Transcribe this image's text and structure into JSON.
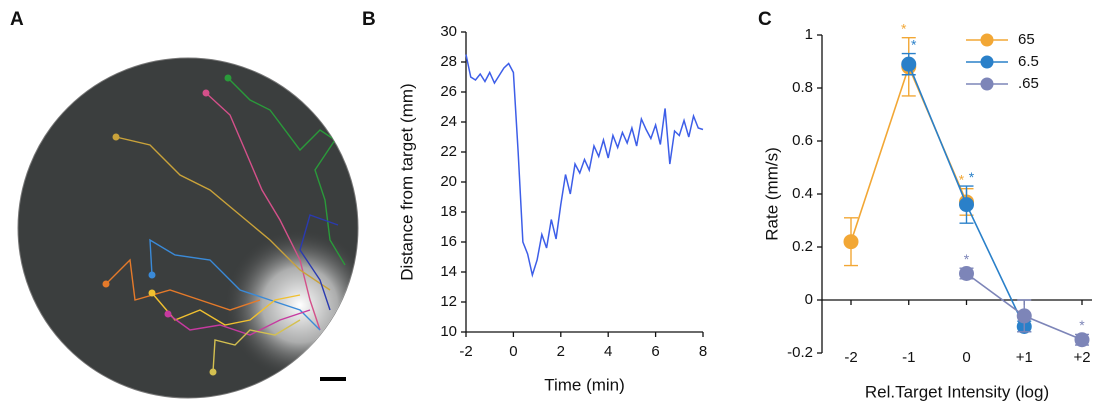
{
  "panel_a": {
    "label": "A"
  },
  "chart_data": [
    {
      "type": "line",
      "label": "B",
      "x_label": "Time (min)",
      "y_label": "Distance from target (mm)",
      "color": "#3d5ee8",
      "x": [
        -2,
        -1.8,
        -1.6,
        -1.4,
        -1.2,
        -1,
        -0.8,
        -0.6,
        -0.4,
        -0.2,
        0,
        0.2,
        0.4,
        0.6,
        0.8,
        1,
        1.2,
        1.4,
        1.6,
        1.8,
        2,
        2.2,
        2.4,
        2.6,
        2.8,
        3,
        3.2,
        3.4,
        3.6,
        3.8,
        4,
        4.2,
        4.4,
        4.6,
        4.8,
        5,
        5.2,
        5.4,
        5.6,
        5.8,
        6,
        6.2,
        6.4,
        6.6,
        6.8,
        7,
        7.2,
        7.4,
        7.6,
        7.8,
        8
      ],
      "y": [
        28.5,
        27,
        26.8,
        27.2,
        26.7,
        27.3,
        26.6,
        27.1,
        27.6,
        27.9,
        27.3,
        22,
        16,
        15.2,
        13.8,
        14.8,
        16.5,
        15.6,
        17.5,
        16.2,
        18.5,
        20.5,
        19.2,
        21.2,
        20.6,
        21.5,
        20.8,
        22.4,
        21.7,
        22.8,
        21.6,
        23.1,
        22.3,
        23.3,
        22.6,
        23.6,
        22.4,
        24.2,
        23.5,
        22.9,
        23.8,
        22.5,
        24.9,
        21.2,
        23.4,
        23.1,
        24.1,
        23,
        24.4,
        23.6,
        23.5
      ],
      "xlim": [
        -2,
        8
      ],
      "ylim": [
        10,
        30
      ],
      "xticks": [
        -2,
        0,
        2,
        4,
        6,
        8
      ],
      "yticks": [
        10,
        12,
        14,
        16,
        18,
        20,
        22,
        24,
        26,
        28,
        30
      ]
    },
    {
      "type": "errorline",
      "label": "C",
      "x_label": "Rel.Target Intensity (log)",
      "y_label": "Rate (mm/s)",
      "categories": [
        "-2",
        "-1",
        "0",
        "+1",
        "+2"
      ],
      "ylim": [
        -0.2,
        1
      ],
      "yticks": [
        -0.2,
        0,
        0.2,
        0.4,
        0.6,
        0.8,
        1
      ],
      "series": [
        {
          "name": "65",
          "color": "#f2a735",
          "values": [
            0.22,
            0.88,
            0.37,
            null,
            null
          ],
          "errors": [
            0.09,
            0.11,
            0.05,
            null,
            null
          ],
          "annotations": [
            null,
            "*",
            "*",
            null,
            null
          ]
        },
        {
          "name": "6.5",
          "color": "#2a80c9",
          "values": [
            null,
            0.89,
            0.36,
            -0.1,
            null
          ],
          "errors": [
            null,
            0.04,
            0.07,
            0.02,
            null
          ],
          "annotations": [
            null,
            "*",
            "*",
            null,
            null
          ]
        },
        {
          "name": ".65",
          "color": "#7d85b8",
          "values": [
            null,
            null,
            0.1,
            -0.06,
            -0.15
          ],
          "errors": [
            null,
            null,
            0.02,
            0.06,
            0.02
          ],
          "annotations": [
            null,
            null,
            "*",
            null,
            "*"
          ]
        }
      ]
    }
  ]
}
